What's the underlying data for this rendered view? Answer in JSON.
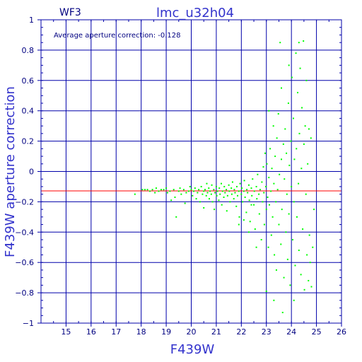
{
  "chart_data": {
    "type": "scatter",
    "title": "lmc_u32h04",
    "chip_label": "WF3",
    "annotation": "Average aperture correction: -0.128",
    "xlabel": "F439W",
    "ylabel": "F439W aperture correction",
    "xlim": [
      14,
      26
    ],
    "ylim": [
      -1,
      1
    ],
    "xticks": [
      15,
      16,
      17,
      18,
      19,
      20,
      21,
      22,
      23,
      24,
      25,
      26
    ],
    "yticks": [
      -1,
      -0.8,
      -0.6,
      -0.4,
      -0.2,
      0,
      0.2,
      0.4,
      0.6,
      0.8,
      1
    ],
    "ytick_labels": [
      "−1",
      "−0.8",
      "−0.6",
      "−0.4",
      "−0.2",
      "0",
      "0.2",
      "0.4",
      "0.6",
      "0.8",
      "1"
    ],
    "grid": true,
    "reference_line": -0.128,
    "colors": {
      "axes": "#0000aa",
      "points": "#00ff00",
      "reference": "#ff0000",
      "text_dark": "#000080",
      "text_light": "#3333cc"
    },
    "points": [
      [
        17.75,
        -0.15
      ],
      [
        18.05,
        -0.12
      ],
      [
        18.15,
        -0.12
      ],
      [
        18.25,
        -0.12
      ],
      [
        18.35,
        -0.13
      ],
      [
        18.45,
        -0.12
      ],
      [
        18.55,
        -0.14
      ],
      [
        18.6,
        -0.11
      ],
      [
        18.7,
        -0.13
      ],
      [
        18.8,
        -0.12
      ],
      [
        18.9,
        -0.12
      ],
      [
        19.0,
        -0.11
      ],
      [
        19.05,
        -0.14
      ],
      [
        19.15,
        -0.13
      ],
      [
        19.2,
        -0.19
      ],
      [
        19.3,
        -0.12
      ],
      [
        19.35,
        -0.17
      ],
      [
        19.4,
        -0.3
      ],
      [
        19.5,
        -0.13
      ],
      [
        19.55,
        -0.11
      ],
      [
        19.6,
        -0.15
      ],
      [
        19.7,
        -0.12
      ],
      [
        19.75,
        -0.21
      ],
      [
        19.8,
        -0.14
      ],
      [
        19.9,
        -0.13
      ],
      [
        19.95,
        -0.1
      ],
      [
        20.0,
        -0.12
      ],
      [
        20.05,
        -0.16
      ],
      [
        20.1,
        -0.13
      ],
      [
        20.15,
        -0.11
      ],
      [
        20.2,
        -0.18
      ],
      [
        20.25,
        -0.14
      ],
      [
        20.3,
        -0.12
      ],
      [
        20.35,
        -0.2
      ],
      [
        20.4,
        -0.1
      ],
      [
        20.45,
        -0.15
      ],
      [
        20.5,
        -0.13
      ],
      [
        20.5,
        -0.24
      ],
      [
        20.55,
        -0.12
      ],
      [
        20.6,
        -0.16
      ],
      [
        20.62,
        -0.08
      ],
      [
        20.65,
        -0.14
      ],
      [
        20.7,
        -0.11
      ],
      [
        20.72,
        -0.18
      ],
      [
        20.75,
        -0.13
      ],
      [
        20.8,
        -0.15
      ],
      [
        20.82,
        -0.09
      ],
      [
        20.85,
        -0.2
      ],
      [
        20.9,
        -0.12
      ],
      [
        20.92,
        -0.25
      ],
      [
        20.95,
        -0.14
      ],
      [
        21.0,
        -0.1
      ],
      [
        21.02,
        -0.16
      ],
      [
        21.05,
        -0.13
      ],
      [
        21.1,
        -0.19
      ],
      [
        21.12,
        -0.11
      ],
      [
        21.15,
        -0.15
      ],
      [
        21.2,
        -0.08
      ],
      [
        21.22,
        -0.22
      ],
      [
        21.25,
        -0.13
      ],
      [
        21.3,
        -0.17
      ],
      [
        21.32,
        -0.1
      ],
      [
        21.35,
        -0.14
      ],
      [
        21.4,
        -0.12
      ],
      [
        21.42,
        -0.26
      ],
      [
        21.45,
        -0.16
      ],
      [
        21.5,
        -0.09
      ],
      [
        21.52,
        -0.13
      ],
      [
        21.55,
        -0.2
      ],
      [
        21.6,
        -0.11
      ],
      [
        21.62,
        -0.15
      ],
      [
        21.65,
        -0.07
      ],
      [
        21.7,
        -0.18
      ],
      [
        21.72,
        -0.12
      ],
      [
        21.75,
        -0.14
      ],
      [
        21.8,
        -0.23
      ],
      [
        21.82,
        -0.1
      ],
      [
        21.85,
        -0.16
      ],
      [
        21.9,
        -0.13
      ],
      [
        21.92,
        -0.3
      ],
      [
        21.95,
        -0.08
      ],
      [
        22.0,
        -0.15
      ],
      [
        22.02,
        -0.11
      ],
      [
        22.05,
        -0.2
      ],
      [
        22.1,
        -0.13
      ],
      [
        22.12,
        -0.06
      ],
      [
        22.15,
        -0.17
      ],
      [
        22.2,
        -0.27
      ],
      [
        22.22,
        -0.12
      ],
      [
        22.25,
        -0.14
      ],
      [
        22.3,
        -0.09
      ],
      [
        22.32,
        -0.19
      ],
      [
        22.35,
        -0.33
      ],
      [
        22.4,
        -0.11
      ],
      [
        22.42,
        -0.16
      ],
      [
        22.45,
        -0.05
      ],
      [
        22.5,
        -0.22
      ],
      [
        22.52,
        -0.13
      ],
      [
        22.55,
        -0.38
      ],
      [
        22.6,
        -0.1
      ],
      [
        22.62,
        -0.18
      ],
      [
        22.65,
        -0.02
      ],
      [
        22.7,
        -0.15
      ],
      [
        22.72,
        -0.28
      ],
      [
        22.75,
        -0.12
      ],
      [
        22.8,
        -0.45
      ],
      [
        22.82,
        -0.07
      ],
      [
        22.85,
        -0.2
      ],
      [
        22.88,
        0.03
      ],
      [
        22.9,
        -0.14
      ],
      [
        22.92,
        -0.35
      ],
      [
        22.95,
        0.12
      ],
      [
        22.98,
        -0.1
      ],
      [
        23.0,
        -0.25
      ],
      [
        23.0,
        -0.79
      ],
      [
        23.02,
        0.05
      ],
      [
        23.05,
        -0.17
      ],
      [
        23.08,
        -0.5
      ],
      [
        23.1,
        -0.04
      ],
      [
        23.12,
        -0.22
      ],
      [
        23.15,
        0.15
      ],
      [
        23.18,
        -0.13
      ],
      [
        23.2,
        -0.42
      ],
      [
        23.22,
        0.02
      ],
      [
        23.25,
        -0.3
      ],
      [
        23.28,
        0.3
      ],
      [
        23.3,
        -0.08
      ],
      [
        23.32,
        -0.55
      ],
      [
        23.35,
        0.1
      ],
      [
        23.38,
        -0.2
      ],
      [
        23.4,
        -0.65
      ],
      [
        23.42,
        0.22
      ],
      [
        23.45,
        -0.12
      ],
      [
        23.48,
        0.38
      ],
      [
        23.5,
        -0.35
      ],
      [
        23.52,
        -0.02
      ],
      [
        23.55,
        0.85
      ],
      [
        23.58,
        -0.48
      ],
      [
        23.6,
        0.08
      ],
      [
        23.62,
        -0.25
      ],
      [
        23.65,
        -0.93
      ],
      [
        23.68,
        0.18
      ],
      [
        23.7,
        -0.7
      ],
      [
        23.72,
        -0.05
      ],
      [
        23.75,
        0.28
      ],
      [
        23.78,
        -0.4
      ],
      [
        23.8,
        0.12
      ],
      [
        23.82,
        -0.15
      ],
      [
        23.85,
        -0.58
      ],
      [
        23.88,
        0.45
      ],
      [
        23.9,
        -0.28
      ],
      [
        23.92,
        0.04
      ],
      [
        23.95,
        -0.75
      ],
      [
        23.98,
        0.2
      ],
      [
        24.0,
        -0.1
      ],
      [
        24.02,
        0.62
      ],
      [
        24.05,
        -0.45
      ],
      [
        24.08,
        0.35
      ],
      [
        24.1,
        -0.2
      ],
      [
        24.12,
        0.08
      ],
      [
        24.15,
        -0.62
      ],
      [
        24.18,
        0.78
      ],
      [
        24.2,
        0.15
      ],
      [
        24.22,
        -0.3
      ],
      [
        24.25,
        0.52
      ],
      [
        24.28,
        -0.08
      ],
      [
        24.3,
        -0.52
      ],
      [
        24.32,
        0.25
      ],
      [
        24.35,
        0.68
      ],
      [
        24.38,
        -0.68
      ],
      [
        24.4,
        0.02
      ],
      [
        24.42,
        0.42
      ],
      [
        24.45,
        -0.38
      ],
      [
        24.48,
        0.86
      ],
      [
        24.5,
        0.18
      ],
      [
        24.52,
        -0.78
      ],
      [
        24.55,
        0.3
      ],
      [
        24.58,
        -0.15
      ],
      [
        24.6,
        0.6
      ],
      [
        24.62,
        -0.55
      ],
      [
        24.65,
        0.05
      ],
      [
        24.68,
        -0.72
      ],
      [
        24.7,
        0.28
      ],
      [
        24.72,
        -0.42
      ],
      [
        24.75,
        -0.6
      ],
      [
        24.78,
        0.22
      ],
      [
        24.8,
        -0.76
      ],
      [
        24.85,
        -0.5
      ],
      [
        24.9,
        -0.25
      ],
      [
        22.1,
        -0.32
      ],
      [
        22.3,
        -0.4
      ],
      [
        22.6,
        -0.5
      ],
      [
        22.4,
        -0.22
      ],
      [
        21.9,
        -0.35
      ],
      [
        23.3,
        -0.85
      ],
      [
        23.1,
        0.4
      ],
      [
        23.6,
        0.55
      ],
      [
        23.9,
        0.7
      ],
      [
        24.1,
        -0.85
      ],
      [
        24.3,
        0.85
      ]
    ]
  }
}
